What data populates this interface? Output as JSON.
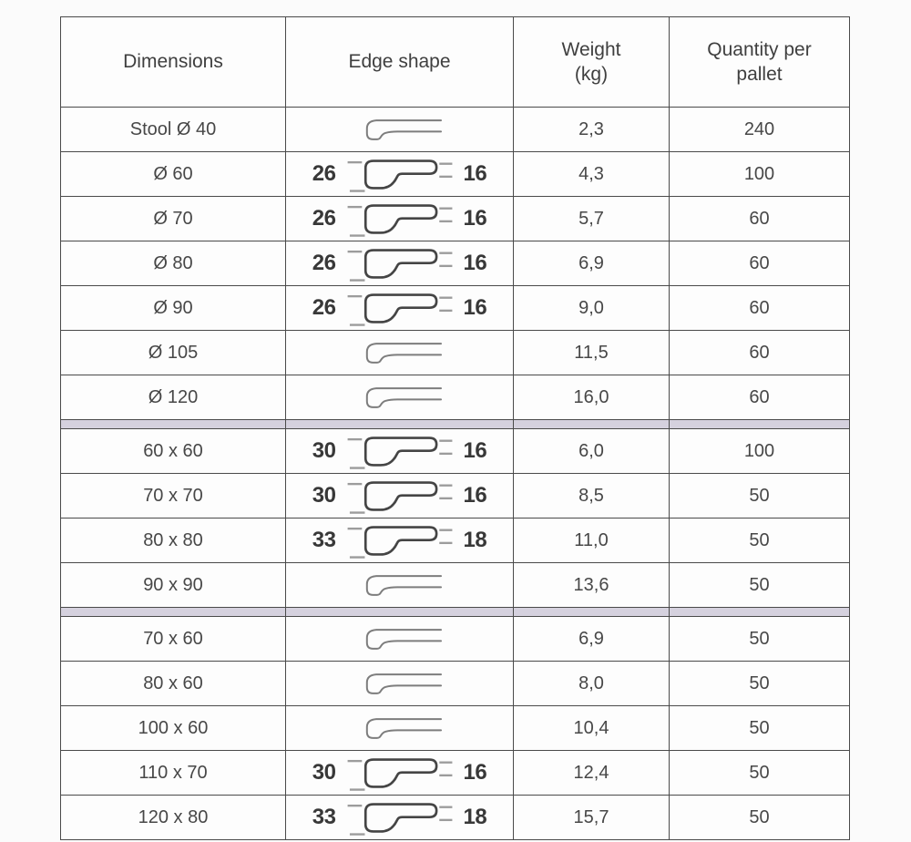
{
  "table": {
    "headers": [
      {
        "id": "dimensions",
        "lines": [
          "Dimensions"
        ]
      },
      {
        "id": "edge-shape",
        "lines": [
          "Edge shape"
        ]
      },
      {
        "id": "weight",
        "lines": [
          "Weight",
          "(kg)"
        ]
      },
      {
        "id": "quantity",
        "lines": [
          "Quantity per",
          "pallet"
        ]
      }
    ],
    "rows": [
      {
        "dimensions": "Stool Ø 40",
        "edge": {
          "type": "plain"
        },
        "weight": "2,3",
        "quantity": "240"
      },
      {
        "dimensions": "Ø 60",
        "edge": {
          "type": "dimensioned",
          "left": "26",
          "right": "16"
        },
        "weight": "4,3",
        "quantity": "100"
      },
      {
        "dimensions": "Ø 70",
        "edge": {
          "type": "dimensioned",
          "left": "26",
          "right": "16"
        },
        "weight": "5,7",
        "quantity": "60"
      },
      {
        "dimensions": "Ø 80",
        "edge": {
          "type": "dimensioned",
          "left": "26",
          "right": "16"
        },
        "weight": "6,9",
        "quantity": "60"
      },
      {
        "dimensions": "Ø 90",
        "edge": {
          "type": "dimensioned",
          "left": "26",
          "right": "16"
        },
        "weight": "9,0",
        "quantity": "60"
      },
      {
        "dimensions": "Ø 105",
        "edge": {
          "type": "plain"
        },
        "weight": "11,5",
        "quantity": "60"
      },
      {
        "dimensions": "Ø 120",
        "edge": {
          "type": "plain"
        },
        "weight": "16,0",
        "quantity": "60"
      },
      {
        "divider": true
      },
      {
        "dimensions": "60 x 60",
        "edge": {
          "type": "dimensioned",
          "left": "30",
          "right": "16"
        },
        "weight": "6,0",
        "quantity": "100"
      },
      {
        "dimensions": "70 x 70",
        "edge": {
          "type": "dimensioned",
          "left": "30",
          "right": "16"
        },
        "weight": "8,5",
        "quantity": "50"
      },
      {
        "dimensions": "80 x 80",
        "edge": {
          "type": "dimensioned",
          "left": "33",
          "right": "18"
        },
        "weight": "11,0",
        "quantity": "50"
      },
      {
        "dimensions": "90 x 90",
        "edge": {
          "type": "plain"
        },
        "weight": "13,6",
        "quantity": "50"
      },
      {
        "divider": true
      },
      {
        "dimensions": "70 x 60",
        "edge": {
          "type": "plain"
        },
        "weight": "6,9",
        "quantity": "50"
      },
      {
        "dimensions": "80 x 60",
        "edge": {
          "type": "plain"
        },
        "weight": "8,0",
        "quantity": "50"
      },
      {
        "dimensions": "100 x 60",
        "edge": {
          "type": "plain"
        },
        "weight": "10,4",
        "quantity": "50"
      },
      {
        "dimensions": "110 x 70",
        "edge": {
          "type": "dimensioned",
          "left": "30",
          "right": "16"
        },
        "weight": "12,4",
        "quantity": "50"
      },
      {
        "dimensions": "120 x 80",
        "edge": {
          "type": "dimensioned",
          "left": "33",
          "right": "18"
        },
        "weight": "15,7",
        "quantity": "50"
      }
    ]
  },
  "icons": {
    "edge_profile_plain": "table-edge-profile-icon",
    "edge_profile_dimensioned": "table-edge-profile-with-dimensions-icon"
  },
  "colors": {
    "border": "#4a4a4a",
    "divider_band": "#d5d1de",
    "text": "#474747",
    "edge_number": "#383838",
    "profile_stroke": "#454545",
    "profile_stroke_light": "#7d7d7d",
    "dash": "#9c9c9c",
    "background": "#fbfbfb"
  }
}
